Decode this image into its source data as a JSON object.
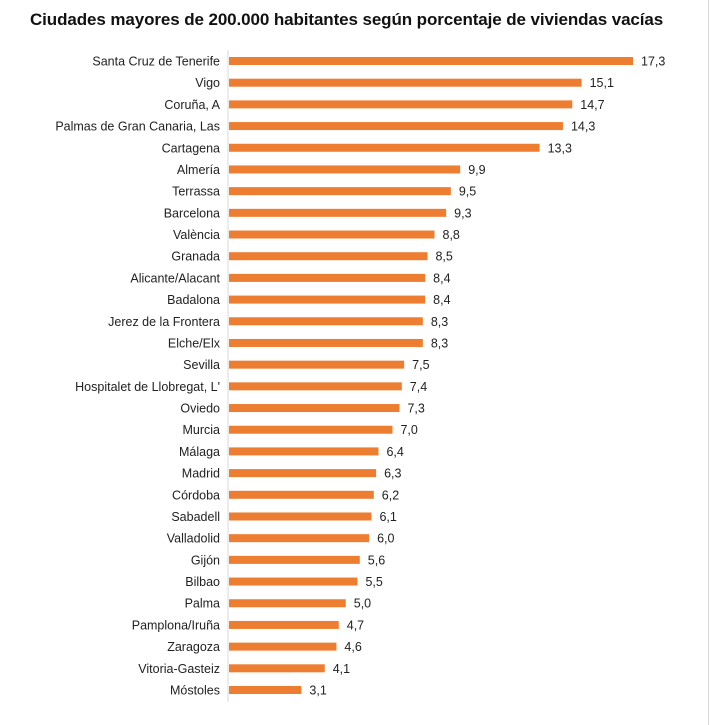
{
  "chart_data": {
    "type": "bar",
    "orientation": "horizontal",
    "title": "Ciudades mayores de 200.000 habitantes según porcentaje de viviendas vacías",
    "categories": [
      "Santa Cruz de Tenerife",
      "Vigo",
      "Coruña, A",
      "Palmas de Gran Canaria, Las",
      "Cartagena",
      "Almería",
      "Terrassa",
      "Barcelona",
      "València",
      "Granada",
      "Alicante/Alacant",
      "Badalona",
      "Jerez de la Frontera",
      "Elche/Elx",
      "Sevilla",
      "Hospitalet de Llobregat, L'",
      "Oviedo",
      "Murcia",
      "Málaga",
      "Madrid",
      "Córdoba",
      "Sabadell",
      "Valladolid",
      "Gijón",
      "Bilbao",
      "Palma",
      "Pamplona/Iruña",
      "Zaragoza",
      "Vitoria-Gasteiz",
      "Móstoles"
    ],
    "values": [
      17.3,
      15.1,
      14.7,
      14.3,
      13.3,
      9.9,
      9.5,
      9.3,
      8.8,
      8.5,
      8.4,
      8.4,
      8.3,
      8.3,
      7.5,
      7.4,
      7.3,
      7.0,
      6.4,
      6.3,
      6.2,
      6.1,
      6.0,
      5.6,
      5.5,
      5.0,
      4.7,
      4.6,
      4.1,
      3.1
    ],
    "value_labels": [
      "17,3",
      "15,1",
      "14,7",
      "14,3",
      "13,3",
      "9,9",
      "9,5",
      "9,3",
      "8,8",
      "8,5",
      "8,4",
      "8,4",
      "8,3",
      "8,3",
      "7,5",
      "7,4",
      "7,3",
      "7,0",
      "6,4",
      "6,3",
      "6,2",
      "6,1",
      "6,0",
      "5,6",
      "5,5",
      "5,0",
      "4,7",
      "4,6",
      "4,1",
      "3,1"
    ],
    "xlim": [
      0,
      17.3
    ],
    "grid": false,
    "legend": "none",
    "colors": {
      "bar": "#ED7D31",
      "axis": "#d9d9d9",
      "text": "#222222"
    }
  }
}
